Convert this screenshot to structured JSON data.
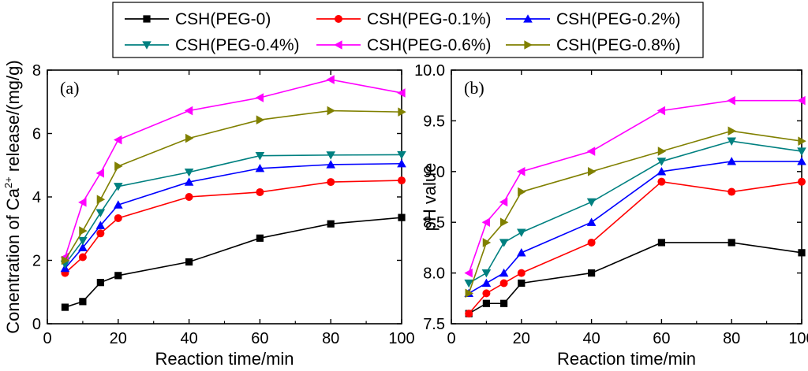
{
  "legend": {
    "entries": [
      "CSH(PEG-0)",
      "CSH(PEG-0.1%)",
      "CSH(PEG-0.2%)",
      "CSH(PEG-0.4%)",
      "CSH(PEG-0.6%)",
      "CSH(PEG-0.8%)"
    ],
    "placement": "top-center"
  },
  "chart_data": [
    {
      "type": "line",
      "panel_label": "(a)",
      "xlabel": "Reaction time/min",
      "ylabel_prefix": "Conentration of Ca",
      "ylabel_superscript": "2+",
      "ylabel_suffix": " release/(mg/g)",
      "xlim": [
        0,
        100
      ],
      "ylim": [
        0,
        8
      ],
      "xticks": [
        0,
        20,
        40,
        60,
        80,
        100
      ],
      "yticks": [
        0,
        2,
        4,
        6,
        8
      ],
      "x": [
        5,
        10,
        15,
        20,
        40,
        60,
        80,
        100
      ],
      "series": [
        {
          "name": "CSH(PEG-0)",
          "color": "#000000",
          "marker": "square",
          "values": [
            0.52,
            0.7,
            1.3,
            1.52,
            1.95,
            2.7,
            3.15,
            3.35
          ]
        },
        {
          "name": "CSH(PEG-0.1%)",
          "color": "#ff0000",
          "marker": "circle",
          "values": [
            1.6,
            2.1,
            2.85,
            3.33,
            4.0,
            4.15,
            4.47,
            4.52
          ]
        },
        {
          "name": "CSH(PEG-0.2%)",
          "color": "#0000ff",
          "marker": "triangle-up",
          "values": [
            1.75,
            2.4,
            3.1,
            3.75,
            4.47,
            4.9,
            5.02,
            5.05
          ]
        },
        {
          "name": "CSH(PEG-0.4%)",
          "color": "#008080",
          "marker": "triangle-down",
          "values": [
            1.88,
            2.62,
            3.5,
            4.33,
            4.78,
            5.3,
            5.32,
            5.33
          ]
        },
        {
          "name": "CSH(PEG-0.6%)",
          "color": "#ff00ff",
          "marker": "triangle-left",
          "values": [
            2.1,
            3.83,
            4.75,
            5.8,
            6.72,
            7.13,
            7.7,
            7.28
          ]
        },
        {
          "name": "CSH(PEG-0.8%)",
          "color": "#808000",
          "marker": "triangle-right",
          "values": [
            2.0,
            2.93,
            3.92,
            4.97,
            5.85,
            6.43,
            6.72,
            6.68
          ]
        }
      ]
    },
    {
      "type": "line",
      "panel_label": "(b)",
      "xlabel": "Reaction time/min",
      "ylabel": "pH value",
      "xlim": [
        0,
        100
      ],
      "ylim": [
        7.5,
        10.0
      ],
      "xticks": [
        0,
        20,
        40,
        60,
        80,
        100
      ],
      "yticks": [
        7.5,
        8.0,
        8.5,
        9.0,
        9.5,
        10.0
      ],
      "ytick_decimals": 1,
      "x": [
        5,
        10,
        15,
        20,
        40,
        60,
        80,
        100
      ],
      "series": [
        {
          "name": "CSH(PEG-0)",
          "color": "#000000",
          "marker": "square",
          "values": [
            7.6,
            7.7,
            7.7,
            7.9,
            8.0,
            8.3,
            8.3,
            8.2
          ]
        },
        {
          "name": "CSH(PEG-0.1%)",
          "color": "#ff0000",
          "marker": "circle",
          "values": [
            7.6,
            7.8,
            7.9,
            8.0,
            8.3,
            8.9,
            8.8,
            8.9
          ]
        },
        {
          "name": "CSH(PEG-0.2%)",
          "color": "#0000ff",
          "marker": "triangle-up",
          "values": [
            7.8,
            7.9,
            8.0,
            8.2,
            8.5,
            9.0,
            9.1,
            9.1
          ]
        },
        {
          "name": "CSH(PEG-0.4%)",
          "color": "#008080",
          "marker": "triangle-down",
          "values": [
            7.9,
            8.0,
            8.3,
            8.4,
            8.7,
            9.1,
            9.3,
            9.2
          ]
        },
        {
          "name": "CSH(PEG-0.6%)",
          "color": "#ff00ff",
          "marker": "triangle-left",
          "values": [
            8.0,
            8.5,
            8.7,
            9.0,
            9.2,
            9.6,
            9.7,
            9.7
          ]
        },
        {
          "name": "CSH(PEG-0.8%)",
          "color": "#808000",
          "marker": "triangle-right",
          "values": [
            7.8,
            8.3,
            8.5,
            8.8,
            9.0,
            9.2,
            9.4,
            9.3
          ]
        }
      ]
    }
  ]
}
